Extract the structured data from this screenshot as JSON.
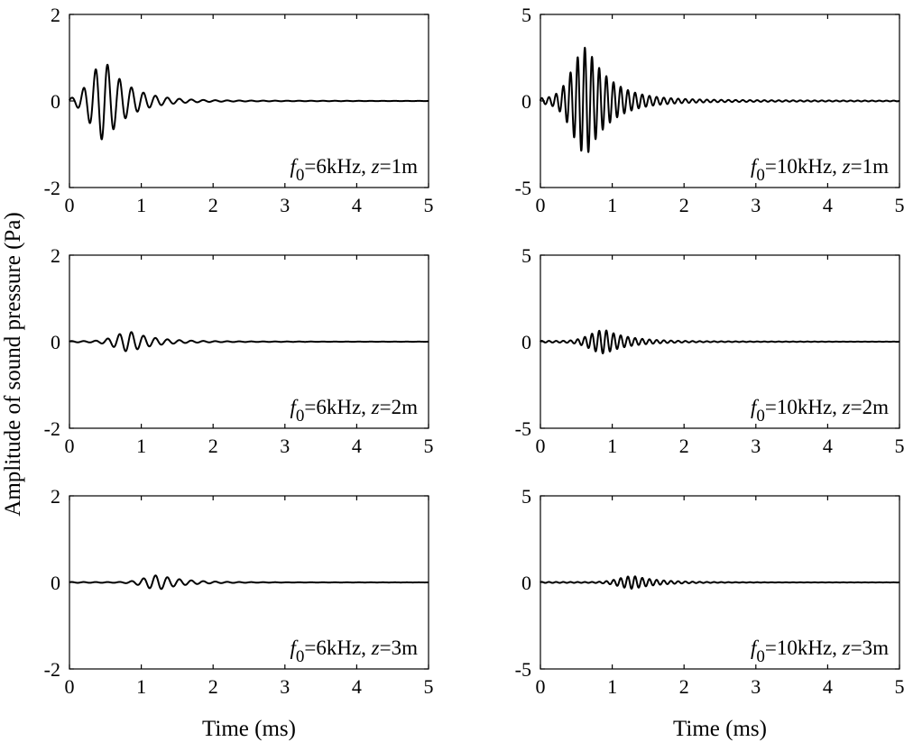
{
  "figure": {
    "ylabel": "Amplitude of sound pressure (Pa)",
    "xlabel": "Time (ms)"
  },
  "chart_data": [
    {
      "type": "line",
      "panel": "top-left",
      "xlabel": "",
      "ylabel": "",
      "xlim": [
        0,
        5
      ],
      "ylim": [
        -2,
        2
      ],
      "xticks": [
        0,
        1,
        2,
        3,
        4,
        5
      ],
      "yticks": [
        -2,
        0,
        2
      ],
      "annotation": {
        "f_symbol": "f",
        "f_sub": "0",
        "f_value": "=6kHz, ",
        "z_symbol": "z",
        "z_value": "=1m"
      },
      "signal": {
        "frequency_khz": 6,
        "peak_time_ms": 0.5,
        "peak_amplitude_pa": 0.9,
        "tail_amplitude_pa": 0.02
      }
    },
    {
      "type": "line",
      "panel": "top-right",
      "xlabel": "",
      "ylabel": "",
      "xlim": [
        0,
        5
      ],
      "ylim": [
        -5,
        5
      ],
      "xticks": [
        0,
        1,
        2,
        3,
        4,
        5
      ],
      "yticks": [
        -5,
        0,
        5
      ],
      "annotation": {
        "f_symbol": "f",
        "f_sub": "0",
        "f_value": "=10kHz, ",
        "z_symbol": "z",
        "z_value": "=1m"
      },
      "signal": {
        "frequency_khz": 10,
        "peak_time_ms": 0.65,
        "peak_amplitude_pa": 3.0,
        "tail_amplitude_pa": 0.15
      }
    },
    {
      "type": "line",
      "panel": "middle-left",
      "xlabel": "",
      "ylabel": "Amplitude of sound pressure (Pa)",
      "xlim": [
        0,
        5
      ],
      "ylim": [
        -2,
        2
      ],
      "xticks": [
        0,
        1,
        2,
        3,
        4,
        5
      ],
      "yticks": [
        -2,
        0,
        2
      ],
      "annotation": {
        "f_symbol": "f",
        "f_sub": "0",
        "f_value": "=6kHz, ",
        "z_symbol": "z",
        "z_value": "=2m"
      },
      "signal": {
        "frequency_khz": 6,
        "peak_time_ms": 0.85,
        "peak_amplitude_pa": 0.22,
        "tail_amplitude_pa": 0.015
      }
    },
    {
      "type": "line",
      "panel": "middle-right",
      "xlabel": "",
      "ylabel": "",
      "xlim": [
        0,
        5
      ],
      "ylim": [
        -5,
        5
      ],
      "xticks": [
        0,
        1,
        2,
        3,
        4,
        5
      ],
      "yticks": [
        -5,
        0,
        5
      ],
      "annotation": {
        "f_symbol": "f",
        "f_sub": "0",
        "f_value": "=10kHz, ",
        "z_symbol": "z",
        "z_value": "=2m"
      },
      "signal": {
        "frequency_khz": 10,
        "peak_time_ms": 0.9,
        "peak_amplitude_pa": 0.65,
        "tail_amplitude_pa": 0.05
      }
    },
    {
      "type": "line",
      "panel": "bottom-left",
      "xlabel": "Time (ms)",
      "ylabel": "",
      "xlim": [
        0,
        5
      ],
      "ylim": [
        -2,
        2
      ],
      "xticks": [
        0,
        1,
        2,
        3,
        4,
        5
      ],
      "yticks": [
        -2,
        0,
        2
      ],
      "annotation": {
        "f_symbol": "f",
        "f_sub": "0",
        "f_value": "=6kHz, ",
        "z_symbol": "z",
        "z_value": "=3m"
      },
      "signal": {
        "frequency_khz": 6,
        "peak_time_ms": 1.25,
        "peak_amplitude_pa": 0.16,
        "tail_amplitude_pa": 0.01
      }
    },
    {
      "type": "line",
      "panel": "bottom-right",
      "xlabel": "Time (ms)",
      "ylabel": "",
      "xlim": [
        0,
        5
      ],
      "ylim": [
        -5,
        5
      ],
      "xticks": [
        0,
        1,
        2,
        3,
        4,
        5
      ],
      "yticks": [
        -5,
        0,
        5
      ],
      "annotation": {
        "f_symbol": "f",
        "f_sub": "0",
        "f_value": "=10kHz, ",
        "z_symbol": "z",
        "z_value": "=3m"
      },
      "signal": {
        "frequency_khz": 10,
        "peak_time_ms": 1.3,
        "peak_amplitude_pa": 0.35,
        "tail_amplitude_pa": 0.03
      }
    }
  ]
}
